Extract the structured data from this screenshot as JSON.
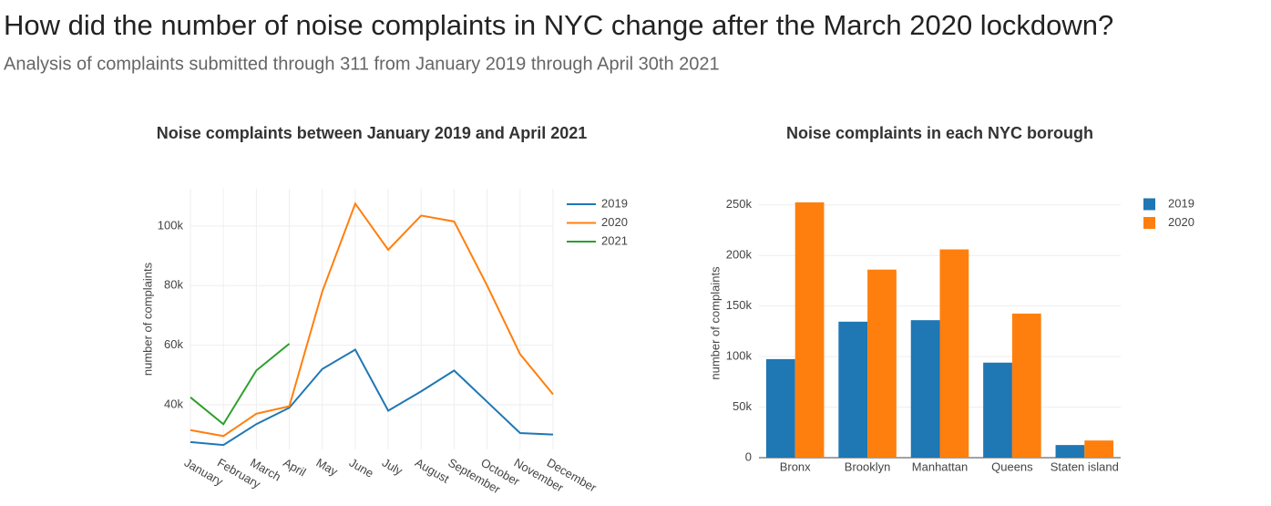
{
  "header": {
    "title": "How did the number of noise complaints in NYC change after the March 2020 lockdown?",
    "subtitle": "Analysis of complaints submitted through 311 from January 2019 through April 30th 2021"
  },
  "chart_data": [
    {
      "type": "line",
      "title": "Noise complaints between January 2019 and April 2021",
      "y_label": "number of complaints",
      "categories": [
        "January",
        "February",
        "March",
        "April",
        "May",
        "June",
        "July",
        "August",
        "September",
        "October",
        "November",
        "December"
      ],
      "series": [
        {
          "name": "2019",
          "color": "#1f77b4",
          "values": [
            27500,
            26500,
            33500,
            39000,
            52000,
            58500,
            38000,
            44500,
            51500,
            41000,
            30500,
            30000
          ]
        },
        {
          "name": "2020",
          "color": "#ff7f0e",
          "values": [
            31500,
            29500,
            37000,
            39500,
            78000,
            107500,
            92000,
            103500,
            101500,
            80000,
            57000,
            43500
          ]
        },
        {
          "name": "2021",
          "color": "#2ca02c",
          "values": [
            42500,
            33500,
            51500,
            60500,
            null,
            null,
            null,
            null,
            null,
            null,
            null,
            null
          ]
        }
      ],
      "ylim": [
        25000,
        112500
      ],
      "yticks": [
        {
          "value": 40000,
          "label": "40k"
        },
        {
          "value": 60000,
          "label": "60k"
        },
        {
          "value": 80000,
          "label": "80k"
        },
        {
          "value": 100000,
          "label": "100k"
        }
      ],
      "grid": true,
      "legend": "right"
    },
    {
      "type": "bar",
      "title": "Noise complaints in each NYC borough",
      "y_label": "number of complaints",
      "categories": [
        "Bronx",
        "Brooklyn",
        "Manhattan",
        "Queens",
        "Staten island"
      ],
      "series": [
        {
          "name": "2019",
          "color": "#1f77b4",
          "values": [
            97500,
            134500,
            136000,
            94000,
            12500
          ]
        },
        {
          "name": "2020",
          "color": "#ff7f0e",
          "values": [
            252500,
            186000,
            206000,
            142500,
            17000
          ]
        }
      ],
      "ylim": [
        0,
        266000
      ],
      "yticks": [
        0,
        {
          "value": 50000,
          "label": "50k"
        },
        {
          "value": 100000,
          "label": "100k"
        },
        {
          "value": 150000,
          "label": "150k"
        },
        {
          "value": 200000,
          "label": "200k"
        },
        {
          "value": 250000,
          "label": "250k"
        }
      ],
      "grid": true,
      "legend": "right"
    }
  ]
}
